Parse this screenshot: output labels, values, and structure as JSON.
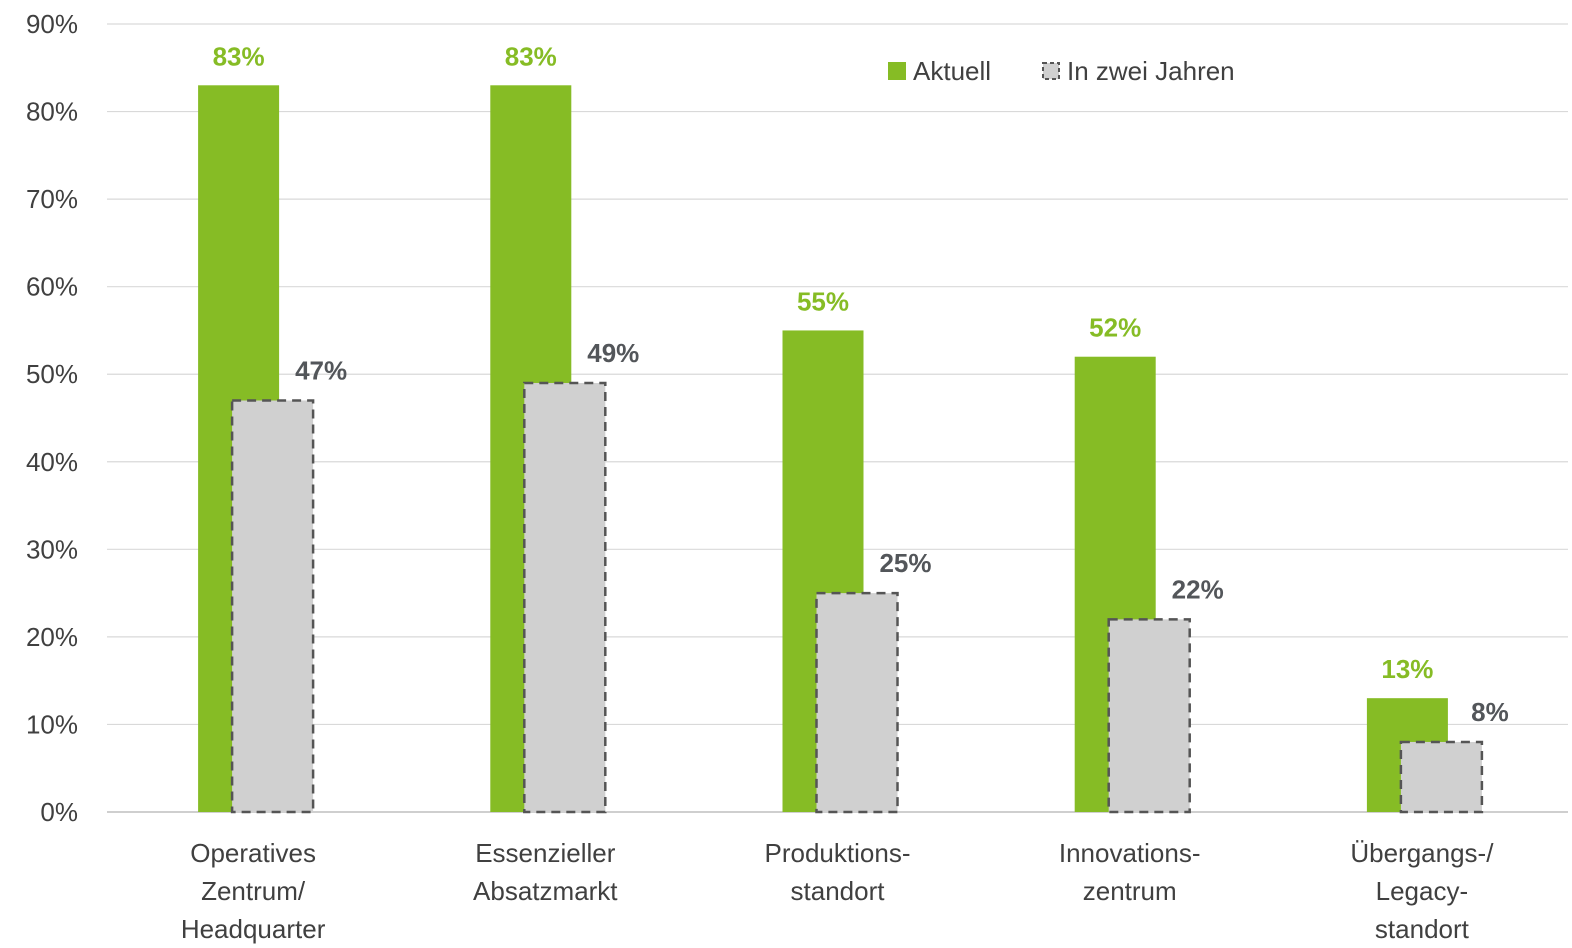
{
  "chart_data": {
    "type": "bar",
    "title": "",
    "xlabel": "",
    "ylabel": "",
    "ylim": [
      0,
      90
    ],
    "yticks": [
      0,
      10,
      20,
      30,
      40,
      50,
      60,
      70,
      80,
      90
    ],
    "ytick_labels": [
      "0%",
      "10%",
      "20%",
      "30%",
      "40%",
      "50%",
      "60%",
      "70%",
      "80%",
      "90%"
    ],
    "grid": true,
    "legend_position": "top-right",
    "categories": [
      [
        "Operatives",
        "Zentrum/",
        "Headquarter"
      ],
      [
        "Essenzieller",
        "Absatzmarkt"
      ],
      [
        "Produktions-",
        "standort"
      ],
      [
        "Innovations-",
        "zentrum"
      ],
      [
        "Übergangs-/",
        "Legacy-",
        "standort"
      ]
    ],
    "series": [
      {
        "name": "Aktuell",
        "values": [
          83,
          83,
          55,
          52,
          13
        ],
        "labels": [
          "83%",
          "83%",
          "55%",
          "52%",
          "13%"
        ],
        "color": "#86bc25",
        "label_color": "#86bc25"
      },
      {
        "name": "In zwei Jahren",
        "values": [
          47,
          49,
          25,
          22,
          8
        ],
        "labels": [
          "47%",
          "49%",
          "25%",
          "22%",
          "8%"
        ],
        "color": "#d0d0d0",
        "border_color": "#555555",
        "border_style": "dashed",
        "label_color": "#53565a"
      }
    ]
  }
}
